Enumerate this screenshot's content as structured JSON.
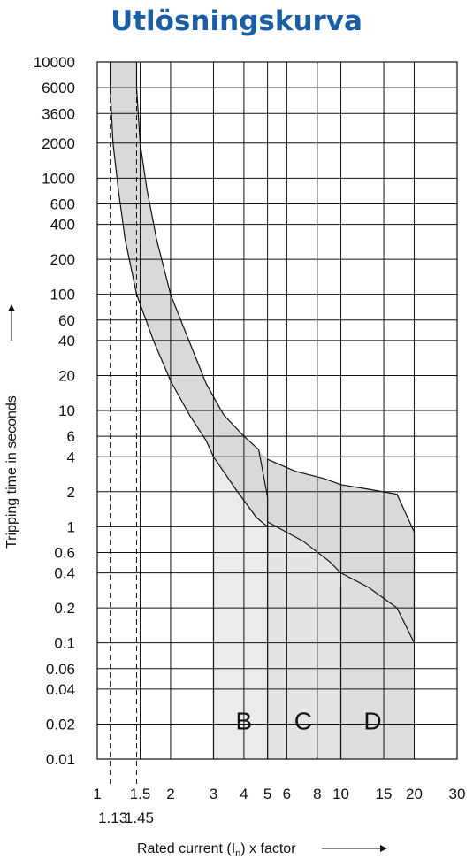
{
  "chart_data": {
    "type": "line",
    "title": "Utlösningskurva",
    "ylabel": "Tripping time in seconds",
    "xlabel": {
      "prefix": "Rated current (I",
      "subscript": "n",
      "suffix": ") x factor"
    },
    "x_scale": "log",
    "y_scale": "log",
    "xlim": [
      1,
      30
    ],
    "ylim": [
      0.01,
      10000
    ],
    "grid": true,
    "x_ticks": [
      {
        "value": 1,
        "label": "1"
      },
      {
        "value": 1.5,
        "label": "1.5"
      },
      {
        "value": 2,
        "label": "2"
      },
      {
        "value": 3,
        "label": "3"
      },
      {
        "value": 4,
        "label": "4"
      },
      {
        "value": 5,
        "label": "5"
      },
      {
        "value": 6,
        "label": "6"
      },
      {
        "value": 8,
        "label": "8"
      },
      {
        "value": 10,
        "label": "10"
      },
      {
        "value": 15,
        "label": "15"
      },
      {
        "value": 20,
        "label": "20"
      },
      {
        "value": 30,
        "label": "30"
      }
    ],
    "x_ticks_secondary": [
      {
        "value": 1.13,
        "label": "1.13"
      },
      {
        "value": 1.45,
        "label": "1.45"
      }
    ],
    "y_ticks": [
      {
        "value": 10000,
        "label": "10000"
      },
      {
        "value": 6000,
        "label": "6000"
      },
      {
        "value": 3600,
        "label": "3600"
      },
      {
        "value": 2000,
        "label": "2000"
      },
      {
        "value": 1000,
        "label": "1000"
      },
      {
        "value": 600,
        "label": "600"
      },
      {
        "value": 400,
        "label": "400"
      },
      {
        "value": 200,
        "label": "200"
      },
      {
        "value": 100,
        "label": "100"
      },
      {
        "value": 60,
        "label": "60"
      },
      {
        "value": 40,
        "label": "40"
      },
      {
        "value": 20,
        "label": "20"
      },
      {
        "value": 10,
        "label": "10"
      },
      {
        "value": 6,
        "label": "6"
      },
      {
        "value": 4,
        "label": "4"
      },
      {
        "value": 2,
        "label": "2"
      },
      {
        "value": 1,
        "label": "1"
      },
      {
        "value": 0.6,
        "label": "0.6"
      },
      {
        "value": 0.4,
        "label": "0.4"
      },
      {
        "value": 0.2,
        "label": "0.2"
      },
      {
        "value": 0.1,
        "label": "0.1"
      },
      {
        "value": 0.06,
        "label": "0.06"
      },
      {
        "value": 0.04,
        "label": "0.04"
      },
      {
        "value": 0.02,
        "label": "0.02"
      },
      {
        "value": 0.01,
        "label": "0.01"
      }
    ],
    "thermal_band": {
      "lower": [
        [
          1.13,
          10000
        ],
        [
          1.13,
          6000
        ],
        [
          1.16,
          2000
        ],
        [
          1.22,
          800
        ],
        [
          1.3,
          300
        ],
        [
          1.45,
          100
        ],
        [
          1.7,
          40
        ],
        [
          2,
          18
        ],
        [
          2.4,
          9
        ],
        [
          2.8,
          5.5
        ],
        [
          3,
          4
        ]
      ],
      "upper": [
        [
          1.45,
          10000
        ],
        [
          1.45,
          6000
        ],
        [
          1.5,
          2000
        ],
        [
          1.6,
          800
        ],
        [
          1.75,
          300
        ],
        [
          2,
          100
        ],
        [
          2.4,
          38
        ],
        [
          2.8,
          17
        ],
        [
          3.3,
          9.2
        ],
        [
          4,
          6
        ]
      ]
    },
    "series": [
      {
        "name": "B",
        "upper_tail": [
          [
            4,
            6
          ],
          [
            4.6,
            4.6
          ],
          [
            5,
            1.8
          ],
          [
            5,
            0.55
          ]
        ],
        "lower_tail": [
          [
            3,
            4
          ],
          [
            3.7,
            2.1
          ],
          [
            4.5,
            1.2
          ],
          [
            5,
            1
          ]
        ],
        "instant_edge": [
          [
            3,
            4
          ],
          [
            3,
            1
          ],
          [
            3,
            0.01
          ]
        ]
      },
      {
        "name": "C",
        "upper_tail": [
          [
            5,
            3.8
          ],
          [
            6.5,
            3
          ],
          [
            8.5,
            2.6
          ],
          [
            10,
            2.3
          ],
          [
            10,
            0.4
          ]
        ],
        "lower_tail": [
          [
            5,
            1.1
          ],
          [
            7,
            0.75
          ],
          [
            9,
            0.5
          ],
          [
            10,
            0.4
          ]
        ],
        "instant_edge": [
          [
            5,
            1
          ],
          [
            5,
            0.3
          ],
          [
            5,
            0.01
          ]
        ]
      },
      {
        "name": "D",
        "upper_tail": [
          [
            10,
            2.3
          ],
          [
            13,
            2.1
          ],
          [
            17,
            1.9
          ],
          [
            20,
            0.9
          ],
          [
            20,
            0.1
          ]
        ],
        "lower_tail": [
          [
            10,
            0.4
          ],
          [
            13,
            0.3
          ],
          [
            17,
            0.2
          ],
          [
            20,
            0.1
          ]
        ],
        "instant_edge": [
          [
            10,
            0.3
          ],
          [
            10,
            0.1
          ],
          [
            10,
            0.01
          ]
        ]
      }
    ]
  }
}
